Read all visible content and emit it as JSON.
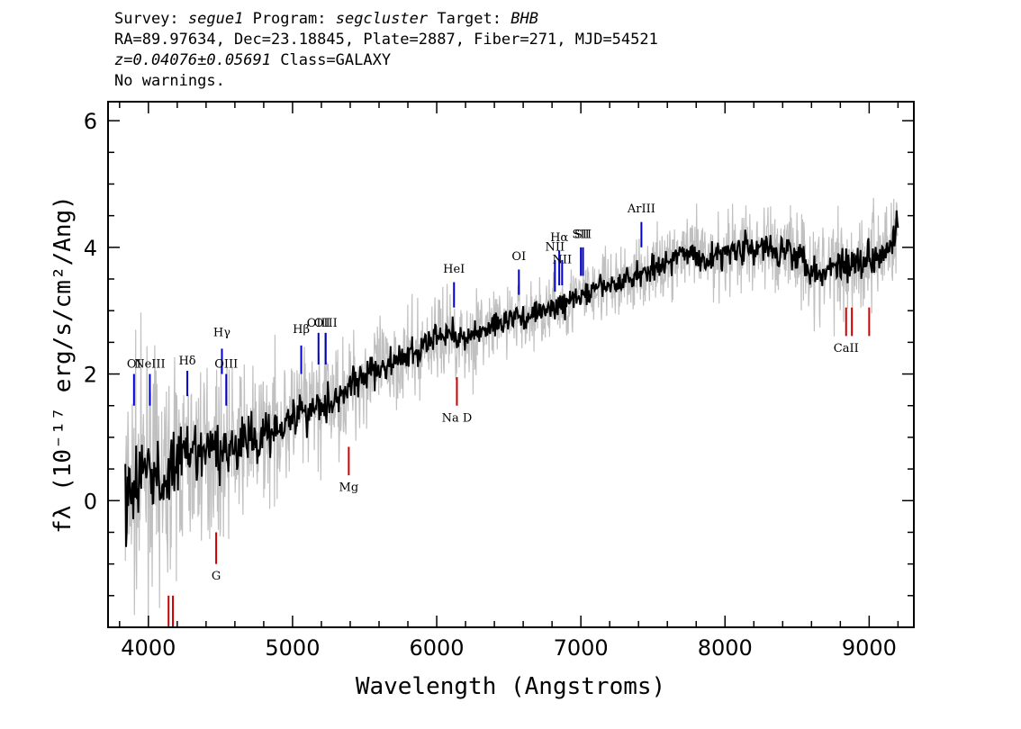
{
  "header": {
    "survey_label": "Survey:",
    "survey": "segue1",
    "program_label": "Program:",
    "program": "segcluster",
    "target_label": "Target:",
    "target": "BHB",
    "line2": "RA=89.97634, Dec=23.18845, Plate=2887, Fiber=271, MJD=54521",
    "redshift": "z=0.04076±0.05691",
    "class_text": "Class=GALAXY",
    "warnings": "No warnings."
  },
  "chart_data": {
    "type": "line",
    "xlabel": "Wavelength (Angstroms)",
    "ylabel": "fλ (10⁻¹⁷ erg/s/cm²/Ang)",
    "xlim": [
      3720,
      9310
    ],
    "ylim": [
      -2.0,
      6.3
    ],
    "xticks": [
      4000,
      5000,
      6000,
      7000,
      8000,
      9000
    ],
    "ytick_labels": [
      {
        "value": 0,
        "label": "0"
      },
      {
        "value": 2,
        "label": "2"
      },
      {
        "value": 4,
        "label": "4"
      },
      {
        "value": 6,
        "label": "6"
      }
    ],
    "series": [
      {
        "kind": "smoothed",
        "color": "#000000",
        "x": [
          3840,
          3900,
          3950,
          4000,
          4050,
          4100,
          4150,
          4200,
          4250,
          4300,
          4350,
          4400,
          4450,
          4500,
          4550,
          4600,
          4650,
          4700,
          4750,
          4800,
          4850,
          4900,
          4950,
          5000,
          5050,
          5100,
          5150,
          5200,
          5250,
          5300,
          5350,
          5400,
          5450,
          5500,
          5550,
          5600,
          5650,
          5700,
          5750,
          5800,
          5850,
          5900,
          5950,
          6000,
          6050,
          6100,
          6150,
          6200,
          6250,
          6300,
          6350,
          6400,
          6450,
          6500,
          6550,
          6600,
          6650,
          6700,
          6750,
          6800,
          6850,
          6900,
          6950,
          7000,
          7050,
          7100,
          7150,
          7200,
          7250,
          7300,
          7350,
          7400,
          7450,
          7500,
          7550,
          7600,
          7650,
          7700,
          7750,
          7800,
          7850,
          7900,
          7950,
          8000,
          8050,
          8100,
          8150,
          8200,
          8250,
          8300,
          8350,
          8400,
          8450,
          8500,
          8550,
          8600,
          8650,
          8700,
          8750,
          8800,
          8850,
          8900,
          8950,
          9000,
          9050,
          9100,
          9150,
          9200
        ],
        "y": [
          0.0,
          0.2,
          0.4,
          0.5,
          0.4,
          0.2,
          0.5,
          0.6,
          0.7,
          0.6,
          0.8,
          0.7,
          0.9,
          0.7,
          0.9,
          0.8,
          0.9,
          1.0,
          0.9,
          1.1,
          1.1,
          1.2,
          1.3,
          1.3,
          1.4,
          1.4,
          1.5,
          1.5,
          1.6,
          1.6,
          1.7,
          1.8,
          1.9,
          2.0,
          2.0,
          2.1,
          2.1,
          2.2,
          2.2,
          2.3,
          2.3,
          2.4,
          2.5,
          2.6,
          2.6,
          2.7,
          2.6,
          2.5,
          2.6,
          2.7,
          2.7,
          2.8,
          2.8,
          2.9,
          2.9,
          2.9,
          2.9,
          3.0,
          3.0,
          3.0,
          3.1,
          3.1,
          3.2,
          3.2,
          3.3,
          3.3,
          3.4,
          3.4,
          3.4,
          3.5,
          3.5,
          3.6,
          3.6,
          3.7,
          3.7,
          3.8,
          3.8,
          3.9,
          3.9,
          3.9,
          3.8,
          3.8,
          3.9,
          3.9,
          4.0,
          4.0,
          4.0,
          3.9,
          4.0,
          4.0,
          3.9,
          4.0,
          4.0,
          3.9,
          3.8,
          3.7,
          3.6,
          3.6,
          3.7,
          3.8,
          3.7,
          3.8,
          3.8,
          3.8,
          3.9,
          4.0,
          4.1,
          4.3
        ]
      },
      {
        "kind": "error",
        "color": "#c0c0c0",
        "x": [
          3840,
          3950,
          4050,
          4150,
          4250,
          4350,
          4450,
          4550,
          4650,
          4750,
          4850,
          4950,
          5050,
          5150,
          5250,
          5350,
          5450,
          5550,
          5650,
          5750,
          5850,
          5950,
          6050,
          6150,
          6250,
          6350,
          6450,
          6550,
          6650,
          6750,
          6850,
          6950,
          7050,
          7150,
          7250,
          7350,
          7450,
          7550,
          7650,
          7750,
          7850,
          7950,
          8050,
          8150,
          8250,
          8350,
          8450,
          8550,
          8650,
          8750,
          8850,
          8950,
          9050,
          9150,
          9200
        ],
        "y": [
          1.4,
          1.3,
          1.2,
          1.1,
          1.0,
          1.0,
          0.9,
          0.9,
          0.8,
          0.8,
          0.8,
          0.7,
          0.7,
          0.7,
          0.7,
          0.6,
          0.6,
          0.6,
          0.5,
          0.5,
          0.5,
          0.5,
          0.5,
          0.5,
          0.5,
          0.4,
          0.4,
          0.4,
          0.4,
          0.4,
          0.4,
          0.4,
          0.4,
          0.4,
          0.4,
          0.4,
          0.4,
          0.4,
          0.4,
          0.4,
          0.5,
          0.5,
          0.5,
          0.5,
          0.5,
          0.5,
          0.6,
          0.6,
          0.6,
          0.6,
          0.6,
          0.6,
          0.6,
          0.7,
          0.7
        ]
      }
    ],
    "emission_lines": [
      {
        "label": "OI",
        "x": 3900,
        "y0": 1.5,
        "y1": 2.0,
        "ly": 2.1,
        "color": "#0000cc"
      },
      {
        "label": "NeIII",
        "x": 4010,
        "y0": 1.5,
        "y1": 2.0,
        "ly": 2.1,
        "color": "#0000cc"
      },
      {
        "label": "Hδ",
        "x": 4270,
        "y0": 1.65,
        "y1": 2.05,
        "ly": 2.15,
        "color": "#0000cc"
      },
      {
        "label": "Hγ",
        "x": 4510,
        "y0": 2.0,
        "y1": 2.4,
        "ly": 2.6,
        "color": "#0000cc"
      },
      {
        "label": "OIII",
        "x": 4540,
        "y0": 1.5,
        "y1": 2.0,
        "ly": 2.1,
        "color": "#0000cc"
      },
      {
        "label": "Hβ",
        "x": 5060,
        "y0": 2.0,
        "y1": 2.45,
        "ly": 2.65,
        "color": "#0000cc"
      },
      {
        "label": "OIII",
        "x": 5180,
        "y0": 2.15,
        "y1": 2.65,
        "ly": 2.75,
        "color": "#0000cc"
      },
      {
        "label": "OIII",
        "x": 5230,
        "y0": 2.15,
        "y1": 2.65,
        "ly": 2.75,
        "color": "#0000cc"
      },
      {
        "label": "HeI",
        "x": 6120,
        "y0": 3.05,
        "y1": 3.45,
        "ly": 3.6,
        "color": "#0000cc"
      },
      {
        "label": "OI",
        "x": 6570,
        "y0": 3.25,
        "y1": 3.65,
        "ly": 3.8,
        "color": "#0000cc"
      },
      {
        "label": "NII",
        "x": 6820,
        "y0": 3.3,
        "y1": 3.8,
        "ly": 3.95,
        "color": "#0000cc"
      },
      {
        "label": "Hα",
        "x": 6850,
        "y0": 3.4,
        "y1": 3.95,
        "ly": 4.1,
        "color": "#0000cc"
      },
      {
        "label": "NII",
        "x": 6870,
        "y0": 3.4,
        "y1": 3.8,
        "ly": 3.75,
        "color": "#0000cc"
      },
      {
        "label": "SII",
        "x": 7000,
        "y0": 3.55,
        "y1": 4.0,
        "ly": 4.15,
        "color": "#0000cc"
      },
      {
        "label": "SII",
        "x": 7015,
        "y0": 3.55,
        "y1": 4.0,
        "ly": 4.15,
        "color": "#0000cc"
      },
      {
        "label": "ArIII",
        "x": 7420,
        "y0": 4.0,
        "y1": 4.4,
        "ly": 4.55,
        "color": "#0000cc"
      }
    ],
    "absorption_lines": [
      {
        "label": "",
        "x": 4140,
        "y0": -2.0,
        "y1": -1.5,
        "ly": -2.1,
        "color": "#cc0000"
      },
      {
        "label": "",
        "x": 4170,
        "y0": -2.0,
        "y1": -1.5,
        "ly": -2.1,
        "color": "#cc0000"
      },
      {
        "label": "G",
        "x": 4470,
        "y0": -1.0,
        "y1": -0.5,
        "ly": -1.25,
        "color": "#cc0000"
      },
      {
        "label": "Mg",
        "x": 5390,
        "y0": 0.4,
        "y1": 0.85,
        "ly": 0.15,
        "color": "#cc0000"
      },
      {
        "label": "Na D",
        "x": 6140,
        "y0": 1.5,
        "y1": 1.95,
        "ly": 1.25,
        "color": "#cc0000"
      },
      {
        "label": "CaII",
        "x": 8840,
        "y0": 2.6,
        "y1": 3.05,
        "ly": 2.35,
        "color": "#cc0000"
      },
      {
        "label": "",
        "x": 8880,
        "y0": 2.6,
        "y1": 3.05,
        "ly": 2.35,
        "color": "#cc0000"
      },
      {
        "label": "",
        "x": 9000,
        "y0": 2.6,
        "y1": 3.05,
        "ly": 2.35,
        "color": "#cc0000"
      }
    ]
  }
}
